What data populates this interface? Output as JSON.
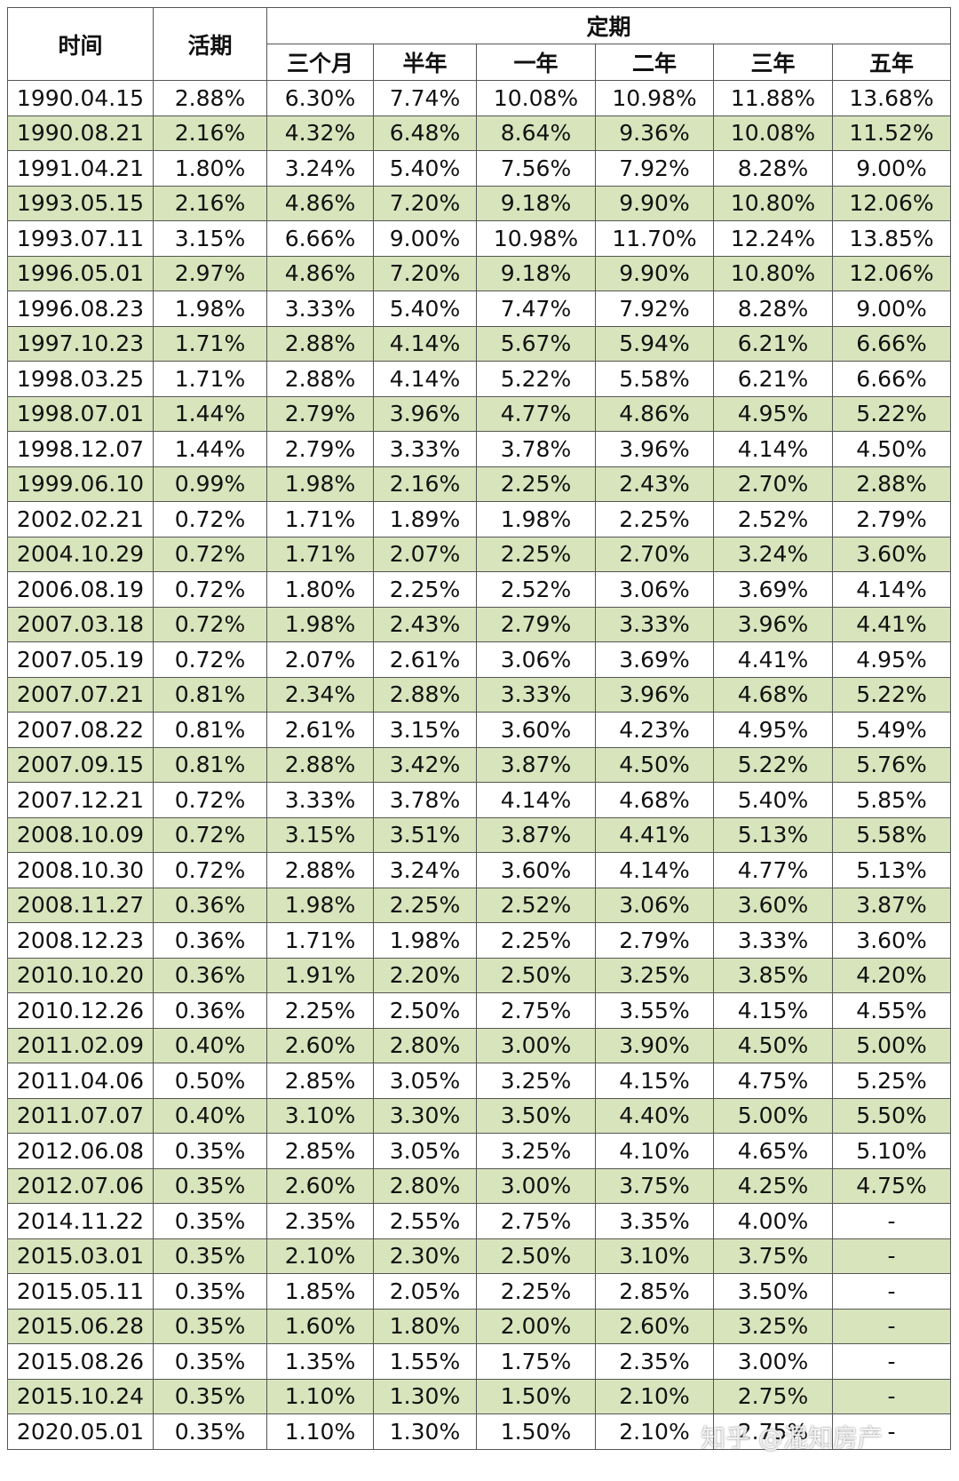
{
  "table": {
    "header": {
      "time": "时间",
      "demand": "活期",
      "fixed": "定期",
      "terms": [
        "三个月",
        "半年",
        "一年",
        "二年",
        "三年",
        "五年"
      ]
    },
    "rows": [
      [
        "1990.04.15",
        "2.88%",
        "6.30%",
        "7.74%",
        "10.08%",
        "10.98%",
        "11.88%",
        "13.68%"
      ],
      [
        "1990.08.21",
        "2.16%",
        "4.32%",
        "6.48%",
        "8.64%",
        "9.36%",
        "10.08%",
        "11.52%"
      ],
      [
        "1991.04.21",
        "1.80%",
        "3.24%",
        "5.40%",
        "7.56%",
        "7.92%",
        "8.28%",
        "9.00%"
      ],
      [
        "1993.05.15",
        "2.16%",
        "4.86%",
        "7.20%",
        "9.18%",
        "9.90%",
        "10.80%",
        "12.06%"
      ],
      [
        "1993.07.11",
        "3.15%",
        "6.66%",
        "9.00%",
        "10.98%",
        "11.70%",
        "12.24%",
        "13.85%"
      ],
      [
        "1996.05.01",
        "2.97%",
        "4.86%",
        "7.20%",
        "9.18%",
        "9.90%",
        "10.80%",
        "12.06%"
      ],
      [
        "1996.08.23",
        "1.98%",
        "3.33%",
        "5.40%",
        "7.47%",
        "7.92%",
        "8.28%",
        "9.00%"
      ],
      [
        "1997.10.23",
        "1.71%",
        "2.88%",
        "4.14%",
        "5.67%",
        "5.94%",
        "6.21%",
        "6.66%"
      ],
      [
        "1998.03.25",
        "1.71%",
        "2.88%",
        "4.14%",
        "5.22%",
        "5.58%",
        "6.21%",
        "6.66%"
      ],
      [
        "1998.07.01",
        "1.44%",
        "2.79%",
        "3.96%",
        "4.77%",
        "4.86%",
        "4.95%",
        "5.22%"
      ],
      [
        "1998.12.07",
        "1.44%",
        "2.79%",
        "3.33%",
        "3.78%",
        "3.96%",
        "4.14%",
        "4.50%"
      ],
      [
        "1999.06.10",
        "0.99%",
        "1.98%",
        "2.16%",
        "2.25%",
        "2.43%",
        "2.70%",
        "2.88%"
      ],
      [
        "2002.02.21",
        "0.72%",
        "1.71%",
        "1.89%",
        "1.98%",
        "2.25%",
        "2.52%",
        "2.79%"
      ],
      [
        "2004.10.29",
        "0.72%",
        "1.71%",
        "2.07%",
        "2.25%",
        "2.70%",
        "3.24%",
        "3.60%"
      ],
      [
        "2006.08.19",
        "0.72%",
        "1.80%",
        "2.25%",
        "2.52%",
        "3.06%",
        "3.69%",
        "4.14%"
      ],
      [
        "2007.03.18",
        "0.72%",
        "1.98%",
        "2.43%",
        "2.79%",
        "3.33%",
        "3.96%",
        "4.41%"
      ],
      [
        "2007.05.19",
        "0.72%",
        "2.07%",
        "2.61%",
        "3.06%",
        "3.69%",
        "4.41%",
        "4.95%"
      ],
      [
        "2007.07.21",
        "0.81%",
        "2.34%",
        "2.88%",
        "3.33%",
        "3.96%",
        "4.68%",
        "5.22%"
      ],
      [
        "2007.08.22",
        "0.81%",
        "2.61%",
        "3.15%",
        "3.60%",
        "4.23%",
        "4.95%",
        "5.49%"
      ],
      [
        "2007.09.15",
        "0.81%",
        "2.88%",
        "3.42%",
        "3.87%",
        "4.50%",
        "5.22%",
        "5.76%"
      ],
      [
        "2007.12.21",
        "0.72%",
        "3.33%",
        "3.78%",
        "4.14%",
        "4.68%",
        "5.40%",
        "5.85%"
      ],
      [
        "2008.10.09",
        "0.72%",
        "3.15%",
        "3.51%",
        "3.87%",
        "4.41%",
        "5.13%",
        "5.58%"
      ],
      [
        "2008.10.30",
        "0.72%",
        "2.88%",
        "3.24%",
        "3.60%",
        "4.14%",
        "4.77%",
        "5.13%"
      ],
      [
        "2008.11.27",
        "0.36%",
        "1.98%",
        "2.25%",
        "2.52%",
        "3.06%",
        "3.60%",
        "3.87%"
      ],
      [
        "2008.12.23",
        "0.36%",
        "1.71%",
        "1.98%",
        "2.25%",
        "2.79%",
        "3.33%",
        "3.60%"
      ],
      [
        "2010.10.20",
        "0.36%",
        "1.91%",
        "2.20%",
        "2.50%",
        "3.25%",
        "3.85%",
        "4.20%"
      ],
      [
        "2010.12.26",
        "0.36%",
        "2.25%",
        "2.50%",
        "2.75%",
        "3.55%",
        "4.15%",
        "4.55%"
      ],
      [
        "2011.02.09",
        "0.40%",
        "2.60%",
        "2.80%",
        "3.00%",
        "3.90%",
        "4.50%",
        "5.00%"
      ],
      [
        "2011.04.06",
        "0.50%",
        "2.85%",
        "3.05%",
        "3.25%",
        "4.15%",
        "4.75%",
        "5.25%"
      ],
      [
        "2011.07.07",
        "0.40%",
        "3.10%",
        "3.30%",
        "3.50%",
        "4.40%",
        "5.00%",
        "5.50%"
      ],
      [
        "2012.06.08",
        "0.35%",
        "2.85%",
        "3.05%",
        "3.25%",
        "4.10%",
        "4.65%",
        "5.10%"
      ],
      [
        "2012.07.06",
        "0.35%",
        "2.60%",
        "2.80%",
        "3.00%",
        "3.75%",
        "4.25%",
        "4.75%"
      ],
      [
        "2014.11.22",
        "0.35%",
        "2.35%",
        "2.55%",
        "2.75%",
        "3.35%",
        "4.00%",
        "-"
      ],
      [
        "2015.03.01",
        "0.35%",
        "2.10%",
        "2.30%",
        "2.50%",
        "3.10%",
        "3.75%",
        "-"
      ],
      [
        "2015.05.11",
        "0.35%",
        "1.85%",
        "2.05%",
        "2.25%",
        "2.85%",
        "3.50%",
        "-"
      ],
      [
        "2015.06.28",
        "0.35%",
        "1.60%",
        "1.80%",
        "2.00%",
        "2.60%",
        "3.25%",
        "-"
      ],
      [
        "2015.08.26",
        "0.35%",
        "1.35%",
        "1.55%",
        "1.75%",
        "2.35%",
        "3.00%",
        "-"
      ],
      [
        "2015.10.24",
        "0.35%",
        "1.10%",
        "1.30%",
        "1.50%",
        "2.10%",
        "2.75%",
        "-"
      ],
      [
        "2020.05.01",
        "0.35%",
        "1.10%",
        "1.30%",
        "1.50%",
        "2.10%",
        "2.75%",
        "-"
      ]
    ]
  },
  "watermark": "知乎 @混知房产"
}
